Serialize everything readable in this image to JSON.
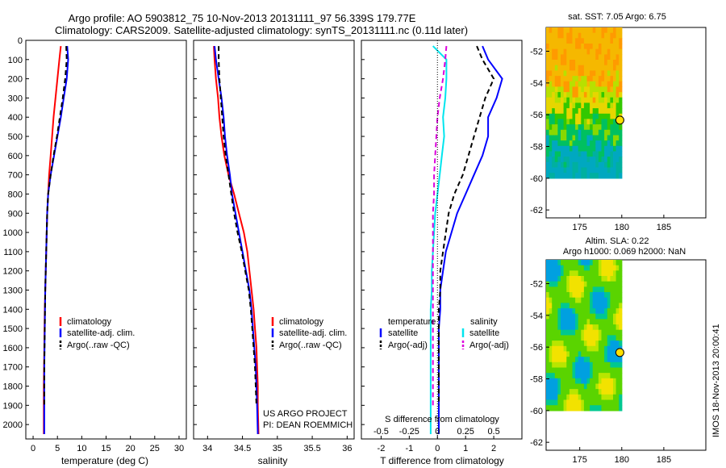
{
  "title": {
    "line1": "Argo profile: AO 5903812_75 10-Nov-2013 20131111_97 56.339S 179.77E",
    "line2": "Climatology: CARS2009. Satellite-adjusted climatology: synTS_20131111.nc (0.11d later)"
  },
  "credit": {
    "line1": "US ARGO PROJECT",
    "line2": "PI: DEAN ROEMMICH"
  },
  "stamp": "IMOS 18-Nov-2013 20:00:41",
  "colors": {
    "climatology": "#ff0000",
    "satellite": "#0000ff",
    "argo": "#000000",
    "sal_satellite": "#00e5ee",
    "sal_argo": "#dd00dd"
  },
  "chart_data": [
    {
      "type": "line",
      "name": "temperature",
      "xlabel": "temperature (deg C)",
      "xlim": [
        -1.5,
        31.5
      ],
      "xticks": [
        "0",
        "5",
        "10",
        "15",
        "20",
        "25",
        "30"
      ],
      "ylim": [
        0,
        2075
      ],
      "yticks": [
        "0",
        "100",
        "200",
        "300",
        "400",
        "500",
        "600",
        "700",
        "800",
        "900",
        "1000",
        "1100",
        "1200",
        "1300",
        "1400",
        "1500",
        "1600",
        "1700",
        "1800",
        "1900",
        "2000"
      ],
      "legend": [
        "climatology",
        "satellite-adj. clim.",
        "Argo(..raw -QC)"
      ],
      "series": [
        {
          "name": "climatology",
          "color": "#ff0000",
          "style": "solid",
          "x": [
            5.7,
            5.4,
            5.0,
            4.6,
            4.2,
            3.9,
            3.6,
            3.3,
            3.1,
            2.9,
            2.8,
            2.7,
            2.6,
            2.5,
            2.4,
            2.35,
            2.3,
            2.25,
            2.2,
            2.2,
            2.2
          ],
          "y": [
            30,
            100,
            200,
            300,
            400,
            500,
            600,
            700,
            800,
            900,
            1000,
            1100,
            1200,
            1300,
            1400,
            1500,
            1600,
            1700,
            1800,
            1900,
            2050
          ]
        },
        {
          "name": "satellite-adj. clim.",
          "color": "#0000ff",
          "style": "solid",
          "x": [
            7.0,
            7.2,
            6.9,
            6.3,
            5.7,
            5.0,
            4.3,
            3.6,
            3.1,
            2.9,
            2.8,
            2.7,
            2.6,
            2.5,
            2.45,
            2.4,
            2.35,
            2.3,
            2.3,
            2.3,
            2.3
          ],
          "y": [
            30,
            100,
            200,
            300,
            400,
            500,
            600,
            700,
            800,
            900,
            1000,
            1100,
            1200,
            1300,
            1400,
            1500,
            1600,
            1700,
            1800,
            1900,
            2050
          ]
        },
        {
          "name": "Argo(..raw -QC)",
          "color": "#000000",
          "style": "dashed",
          "x": [
            6.8,
            6.9,
            6.6,
            6.1,
            5.5,
            4.9,
            4.2,
            3.6,
            3.1,
            2.9,
            2.8,
            2.7,
            2.6,
            2.5,
            2.45,
            2.4,
            2.35,
            2.3,
            2.3,
            2.3
          ],
          "y": [
            30,
            100,
            200,
            300,
            400,
            500,
            600,
            700,
            800,
            900,
            1000,
            1100,
            1200,
            1300,
            1400,
            1500,
            1600,
            1700,
            1800,
            1900
          ]
        }
      ]
    },
    {
      "type": "line",
      "name": "salinity",
      "xlabel": "salinity",
      "xlim": [
        33.8,
        36.1
      ],
      "xticks": [
        "34",
        "34.5",
        "35",
        "35.5",
        "36"
      ],
      "ylim": [
        0,
        2075
      ],
      "legend": [
        "climatology",
        "satellite-adj. clim.",
        "Argo(..raw -QC)"
      ],
      "series": [
        {
          "name": "climatology",
          "color": "#ff0000",
          "style": "solid",
          "x": [
            34.09,
            34.1,
            34.12,
            34.15,
            34.17,
            34.2,
            34.24,
            34.3,
            34.38,
            34.45,
            34.52,
            34.57,
            34.6,
            34.63,
            34.66,
            34.68,
            34.7,
            34.71,
            34.72,
            34.72,
            34.73
          ],
          "y": [
            30,
            100,
            200,
            300,
            400,
            500,
            600,
            700,
            800,
            900,
            1000,
            1100,
            1200,
            1300,
            1400,
            1500,
            1600,
            1700,
            1800,
            1900,
            2050
          ]
        },
        {
          "name": "satellite-adj. clim.",
          "color": "#0000ff",
          "style": "solid",
          "x": [
            34.1,
            34.12,
            34.16,
            34.2,
            34.23,
            34.25,
            34.28,
            34.32,
            34.35,
            34.4,
            34.45,
            34.5,
            34.55,
            34.6,
            34.63,
            34.65,
            34.67,
            34.69,
            34.7,
            34.71,
            34.72
          ],
          "y": [
            30,
            100,
            200,
            300,
            400,
            500,
            600,
            700,
            800,
            900,
            1000,
            1100,
            1200,
            1300,
            1400,
            1500,
            1600,
            1700,
            1800,
            1900,
            2050
          ]
        },
        {
          "name": "Argo(..raw -QC)",
          "color": "#000000",
          "style": "dashed",
          "x": [
            34.16,
            34.16,
            34.17,
            34.19,
            34.21,
            34.23,
            34.26,
            34.3,
            34.34,
            34.38,
            34.43,
            34.49,
            34.54,
            34.59,
            34.62,
            34.64,
            34.66,
            34.68,
            34.69,
            34.7
          ],
          "y": [
            30,
            100,
            200,
            300,
            400,
            500,
            600,
            700,
            800,
            900,
            1000,
            1100,
            1200,
            1300,
            1400,
            1500,
            1600,
            1700,
            1800,
            1900
          ]
        }
      ]
    },
    {
      "type": "line",
      "name": "differences",
      "xlabel": "T difference from climatology",
      "x2label": "S difference from climatology",
      "xlim": [
        -2.7,
        3.0
      ],
      "xticks": [
        "-2",
        "-1",
        "0",
        "1",
        "2"
      ],
      "x2ticks": [
        "-0.5",
        "-0.25",
        "0",
        "0.25",
        "0.5"
      ],
      "ylim": [
        0,
        2075
      ],
      "legend_heads": [
        "temperature",
        "salinity"
      ],
      "legend": [
        "satellite",
        "Argo(-adj)",
        "satellite",
        "Argo(-adj)"
      ],
      "series": [
        {
          "name": "satellite",
          "color": "#0000ff",
          "style": "solid",
          "x": [
            1.6,
            1.8,
            2.3,
            2.1,
            1.8,
            1.8,
            1.6,
            1.3,
            1.0,
            0.7,
            0.5,
            0.3,
            0.2,
            0.1,
            0.1,
            0.05,
            0.05,
            0.05,
            0.05,
            0.05,
            0.05
          ],
          "y": [
            30,
            100,
            200,
            300,
            400,
            500,
            600,
            700,
            800,
            900,
            1000,
            1100,
            1200,
            1300,
            1400,
            1500,
            1600,
            1700,
            1800,
            1900,
            2050
          ]
        },
        {
          "name": "Argo(-adj)",
          "color": "#000000",
          "style": "dashed",
          "x": [
            1.4,
            1.6,
            2.0,
            1.7,
            1.5,
            1.3,
            1.1,
            0.9,
            0.6,
            0.4,
            0.3,
            0.2,
            0.1,
            0.1,
            0.05,
            0.05,
            0.05,
            0.05,
            0.05,
            0.05
          ],
          "y": [
            30,
            100,
            200,
            300,
            400,
            500,
            600,
            700,
            800,
            900,
            1000,
            1100,
            1200,
            1300,
            1400,
            1500,
            1600,
            1700,
            1800,
            1900
          ]
        },
        {
          "name": "satellite",
          "color": "#00e5ee",
          "style": "solid",
          "x": [
            -0.04,
            0.08,
            0.08,
            0.07,
            0.05,
            0.06,
            0.04,
            0.02,
            0.0,
            -0.02,
            -0.03,
            -0.04,
            -0.05,
            -0.05,
            -0.06,
            -0.06,
            -0.06,
            -0.06,
            -0.06,
            -0.06,
            -0.06
          ],
          "y": [
            30,
            100,
            200,
            300,
            400,
            500,
            600,
            700,
            800,
            900,
            1000,
            1100,
            1200,
            1300,
            1400,
            1500,
            1600,
            1700,
            1800,
            1900,
            2050
          ]
        },
        {
          "name": "Argo(-adj)",
          "color": "#dd00dd",
          "style": "dashed",
          "x": [
            0.08,
            0.07,
            0.05,
            0.02,
            0.0,
            -0.01,
            -0.02,
            -0.03,
            -0.03,
            -0.04,
            -0.04,
            -0.04,
            -0.04,
            -0.04,
            -0.04,
            -0.04,
            -0.04,
            -0.04,
            -0.04,
            -0.04
          ],
          "y": [
            30,
            100,
            200,
            300,
            400,
            500,
            600,
            700,
            800,
            900,
            1000,
            1100,
            1200,
            1300,
            1400,
            1500,
            1600,
            1700,
            1800,
            1900
          ]
        }
      ]
    },
    {
      "type": "heatmap",
      "name": "sst_map",
      "title": "sat. SST: 7.05 Argo: 6.75",
      "xlim": [
        171,
        190
      ],
      "ylim": [
        -62.5,
        -50.5
      ],
      "xticks": [
        "175",
        "180",
        "185"
      ],
      "yticks": [
        "-52",
        "-54",
        "-56",
        "-58",
        "-60",
        "-62"
      ],
      "marker": [
        179.77,
        -56.339
      ]
    },
    {
      "type": "heatmap",
      "name": "sla_map",
      "title_line1": "Altim. SLA: 0.22",
      "title_line2": "Argo h1000: 0.069 h2000: NaN",
      "xlim": [
        171,
        190
      ],
      "ylim": [
        -62.5,
        -50.5
      ],
      "xticks": [
        "175",
        "180",
        "185"
      ],
      "yticks": [
        "-52",
        "-54",
        "-56",
        "-58",
        "-60",
        "-62"
      ],
      "marker": [
        179.77,
        -56.339
      ]
    }
  ]
}
